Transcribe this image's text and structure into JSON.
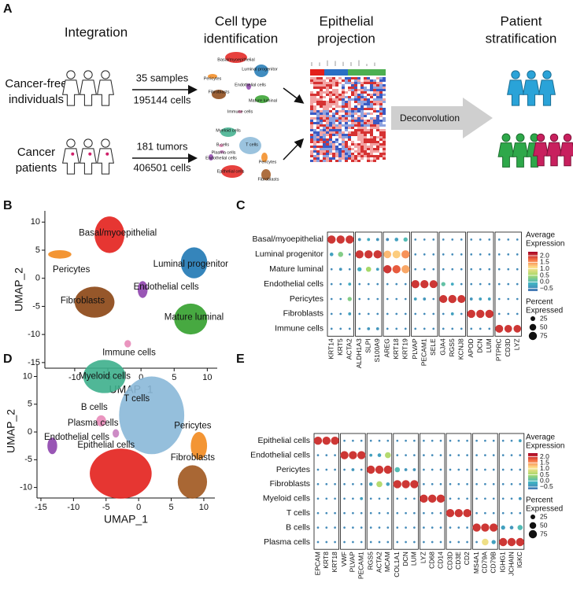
{
  "panel_labels": [
    "A",
    "B",
    "C",
    "D",
    "E"
  ],
  "panel_a": {
    "steps": {
      "integration": "Integration",
      "cell_type": [
        "Cell type",
        "identification"
      ],
      "projection": [
        "Epithelial",
        "projection"
      ],
      "stratification": [
        "Patient",
        "stratification"
      ]
    },
    "groups": [
      {
        "name": [
          "Cancer-free",
          "individuals"
        ],
        "count": "35 samples",
        "cells": "195144 cells"
      },
      {
        "name": [
          "Cancer",
          "patients"
        ],
        "count": "181 tumors",
        "cells": "406501 cells"
      }
    ],
    "mini_umap_1": [
      "Basal/myoepithelial",
      "Luminal progenitor",
      "Pericytes",
      "Endothelial cells",
      "Fibroblasts",
      "Mature luminal",
      "Immune cells"
    ],
    "mini_umap_2": [
      "Myeloid cells",
      "T cells",
      "B cells",
      "Plasma cells",
      "Endothelial cells",
      "Pericytes",
      "Epithelial cells",
      "Fibroblasts"
    ],
    "deconvolution": "Deconvolution"
  },
  "chart_data": [
    {
      "type": "scatter",
      "xlabel": "UMAP_1",
      "ylabel": "UMAP_2",
      "xlim": [
        -14.5,
        11.5
      ],
      "ylim": [
        -16,
        12
      ],
      "xticks": [
        -10,
        -5,
        0,
        5,
        10
      ],
      "yticks": [
        -15,
        -10,
        -5,
        0,
        5,
        10
      ],
      "clusters": [
        {
          "name": "Basal/myoepithelial",
          "color": "#e3201c",
          "x": [
            -7,
            -2.5
          ],
          "y": [
            4.5,
            11
          ]
        },
        {
          "name": "Luminal progenitor",
          "color": "#1f78b4",
          "x": [
            6,
            10
          ],
          "y": [
            0,
            5.5
          ]
        },
        {
          "name": "Pericytes",
          "color": "#f28a1e",
          "x": [
            -14,
            -10.5
          ],
          "y": [
            3.5,
            5
          ]
        },
        {
          "name": "Endothelial cells",
          "color": "#8e44ad",
          "x": [
            -0.5,
            1
          ],
          "y": [
            -3.5,
            -0.5
          ]
        },
        {
          "name": "Fibroblasts",
          "color": "#8b4513",
          "x": [
            -10,
            -4
          ],
          "y": [
            -7,
            -1.5
          ]
        },
        {
          "name": "Mature luminal",
          "color": "#33a02c",
          "x": [
            5,
            10
          ],
          "y": [
            -10,
            -4.5
          ]
        },
        {
          "name": "Immune cells",
          "color": "#e889b8",
          "x": [
            -2.5,
            -1.5
          ],
          "y": [
            -12.3,
            -11
          ]
        }
      ]
    },
    {
      "type": "scatter",
      "xlabel": "UMAP_1",
      "ylabel": "UMAP_2",
      "xlim": [
        -15.6,
        11.7
      ],
      "ylim": [
        -11.9,
        12.2
      ],
      "xticks": [
        -15,
        -10,
        -5,
        0,
        5,
        10
      ],
      "yticks": [
        -10,
        -5,
        0,
        5,
        10
      ],
      "clusters": [
        {
          "name": "Myeloid cells",
          "color": "#3daf8c",
          "x": [
            -8.5,
            -2
          ],
          "y": [
            7,
            13
          ]
        },
        {
          "name": "T cells",
          "color": "#8ab8d8",
          "x": [
            -3,
            7
          ],
          "y": [
            -4,
            10
          ]
        },
        {
          "name": "B cells",
          "color": "#e889b8",
          "x": [
            -6.5,
            -5
          ],
          "y": [
            1,
            3
          ]
        },
        {
          "name": "Plasma cells",
          "color": "#c880c0",
          "x": [
            -4,
            -3
          ],
          "y": [
            -1,
            0.5
          ]
        },
        {
          "name": "Endothelial cells",
          "color": "#8e44ad",
          "x": [
            -14,
            -12.5
          ],
          "y": [
            -4,
            -1
          ]
        },
        {
          "name": "Epithelial cells",
          "color": "#e3201c",
          "x": [
            -7.5,
            2
          ],
          "y": [
            -12,
            -3
          ]
        },
        {
          "name": "Pericytes",
          "color": "#f28a1e",
          "x": [
            8,
            10.5
          ],
          "y": [
            -5,
            0
          ]
        },
        {
          "name": "Fibroblasts",
          "color": "#a0561e",
          "x": [
            6,
            10.5
          ],
          "y": [
            -12,
            -6
          ]
        }
      ]
    },
    {
      "type": "dot",
      "rows": [
        "Basal/myoepithelial",
        "Luminal progenitor",
        "Mature luminal",
        "Endothelial cells",
        "Pericytes",
        "Fibroblasts",
        "Immune cells"
      ],
      "gene_groups": [
        [
          "KRT14",
          "KRT5",
          "ACTA2"
        ],
        [
          "ALDH1A3",
          "SLPI",
          "S100A9"
        ],
        [
          "AREG",
          "KRT18",
          "KRT19"
        ],
        [
          "PLVAP",
          "PECAM1",
          "SELE"
        ],
        [
          "GJA4",
          "RGS5",
          "KCNJ8"
        ],
        [
          "APOD",
          "DCN",
          "LUM"
        ],
        [
          "PTPRC",
          "CD3D",
          "LYZ"
        ]
      ],
      "expression": [
        [
          2,
          2,
          2,
          -0.4,
          -0.2,
          -0.4,
          -0.5,
          -0.3,
          0,
          -0.5,
          -0.5,
          -0.5,
          -0.5,
          -0.5,
          -0.5,
          -0.5,
          -0.5,
          -0.5,
          -0.5,
          -0.5,
          -0.5
        ],
        [
          -0.3,
          0.3,
          -0.5,
          2,
          2,
          2,
          1.3,
          1.2,
          1.5,
          -0.5,
          -0.5,
          -0.5,
          -0.5,
          -0.5,
          -0.5,
          -0.5,
          -0.5,
          -0.5,
          -0.5,
          -0.5,
          -0.5
        ],
        [
          -0.5,
          -0.4,
          -0.5,
          -0.2,
          0.5,
          -0.3,
          2,
          1.8,
          1.4,
          -0.5,
          -0.5,
          -0.5,
          -0.5,
          -0.5,
          -0.5,
          -0.5,
          -0.5,
          -0.5,
          -0.5,
          -0.5,
          -0.5
        ],
        [
          -0.5,
          -0.5,
          -0.2,
          -0.5,
          -0.5,
          -0.5,
          -0.5,
          -0.5,
          -0.5,
          2,
          2,
          2,
          0.1,
          -0.2,
          -0.5,
          -0.5,
          -0.5,
          -0.5,
          -0.5,
          -0.5,
          -0.5
        ],
        [
          -0.5,
          -0.5,
          0.3,
          -0.5,
          -0.5,
          -0.5,
          -0.5,
          -0.5,
          -0.5,
          -0.3,
          -0.4,
          -0.5,
          2,
          2,
          2,
          -0.4,
          -0.3,
          -0.3,
          -0.5,
          -0.5,
          -0.5
        ],
        [
          -0.5,
          -0.5,
          -0.3,
          -0.5,
          -0.5,
          -0.5,
          -0.5,
          -0.5,
          -0.5,
          -0.5,
          -0.5,
          -0.5,
          -0.5,
          -0.3,
          -0.5,
          2,
          2,
          2,
          -0.5,
          -0.5,
          -0.5
        ],
        [
          -0.5,
          -0.5,
          -0.5,
          -0.5,
          -0.4,
          -0.4,
          -0.5,
          -0.5,
          -0.5,
          -0.5,
          -0.5,
          -0.5,
          -0.5,
          -0.5,
          -0.5,
          -0.5,
          -0.5,
          -0.5,
          2,
          2,
          2
        ]
      ],
      "percent": [
        [
          75,
          75,
          75,
          10,
          10,
          10,
          10,
          15,
          20,
          5,
          5,
          5,
          5,
          5,
          5,
          5,
          5,
          5,
          5,
          5,
          5
        ],
        [
          15,
          30,
          5,
          75,
          75,
          75,
          65,
          70,
          75,
          5,
          5,
          5,
          5,
          5,
          5,
          5,
          5,
          5,
          5,
          5,
          5
        ],
        [
          5,
          10,
          5,
          20,
          30,
          10,
          75,
          75,
          75,
          5,
          5,
          5,
          5,
          5,
          5,
          5,
          5,
          5,
          5,
          5,
          5
        ],
        [
          5,
          5,
          10,
          5,
          5,
          5,
          5,
          5,
          5,
          75,
          75,
          70,
          20,
          10,
          5,
          5,
          5,
          5,
          5,
          5,
          5
        ],
        [
          5,
          5,
          20,
          5,
          5,
          5,
          5,
          5,
          5,
          10,
          10,
          5,
          70,
          75,
          70,
          10,
          10,
          10,
          5,
          5,
          5
        ],
        [
          5,
          5,
          10,
          5,
          5,
          5,
          5,
          5,
          5,
          5,
          5,
          5,
          5,
          10,
          5,
          75,
          75,
          75,
          5,
          5,
          5
        ],
        [
          5,
          5,
          5,
          5,
          10,
          10,
          5,
          5,
          5,
          5,
          5,
          5,
          5,
          5,
          5,
          5,
          5,
          5,
          70,
          65,
          65
        ]
      ],
      "color_title": [
        "Average",
        "Expression"
      ],
      "size_title": [
        "Percent",
        "Expressed"
      ],
      "colormap": [
        "#4575b4",
        "#41b6c4",
        "#a6d96a",
        "#fee08b",
        "#f46d43",
        "#a50026"
      ],
      "color_lim": [
        -0.7,
        2.3
      ],
      "color_ticks": [
        {
          "value": 2,
          "label": "2.0"
        },
        {
          "value": 1.5,
          "label": "1.5"
        },
        {
          "value": 1,
          "label": "1.0"
        },
        {
          "value": 0.5,
          "label": "0.5"
        },
        {
          "value": 0,
          "label": "0.0"
        },
        {
          "value": -0.5,
          "label": "−0.5"
        }
      ],
      "size_ticks": [
        25,
        50,
        75
      ]
    },
    {
      "type": "dot",
      "rows": [
        "Epithelial cells",
        "Endothelial cells",
        "Pericytes",
        "Fibroblasts",
        "Myeloid cells",
        "T cells",
        "B cells",
        "Plasma cells"
      ],
      "gene_groups": [
        [
          "EPCAM",
          "KRT8",
          "KRT18"
        ],
        [
          "VWF",
          "PLVAP",
          "PECAM1"
        ],
        [
          "RGS5",
          "ACTA2",
          "MCAM"
        ],
        [
          "COL1A1",
          "DCN",
          "LUM"
        ],
        [
          "LYZ",
          "CD68",
          "CD14"
        ],
        [
          "CD3D",
          "CD3E",
          "CD2"
        ],
        [
          "MS4A1",
          "CD79A",
          "CD79B"
        ],
        [
          "IGHG1",
          "JCHAIN",
          "IGKC"
        ]
      ],
      "expression": [
        [
          2,
          2,
          2,
          -0.5,
          -0.5,
          -0.5,
          -0.5,
          -0.5,
          -0.5,
          -0.5,
          -0.5,
          -0.5,
          -0.5,
          -0.5,
          -0.5,
          -0.5,
          -0.5,
          -0.5,
          -0.5,
          -0.5,
          -0.5,
          -0.5,
          -0.5,
          -0.3
        ],
        [
          -0.5,
          -0.5,
          -0.5,
          2,
          2,
          2,
          -0.3,
          -0.3,
          0.6,
          -0.5,
          -0.5,
          -0.5,
          -0.5,
          -0.5,
          -0.5,
          -0.5,
          -0.5,
          -0.5,
          -0.5,
          -0.5,
          -0.5,
          -0.5,
          -0.5,
          -0.5
        ],
        [
          -0.5,
          -0.5,
          -0.5,
          -0.5,
          -0.4,
          -0.5,
          2,
          2,
          2,
          0,
          -0.4,
          -0.4,
          -0.5,
          -0.5,
          -0.5,
          -0.5,
          -0.5,
          -0.5,
          -0.5,
          -0.5,
          -0.5,
          -0.5,
          -0.5,
          -0.5
        ],
        [
          -0.5,
          -0.5,
          -0.5,
          -0.5,
          -0.5,
          -0.5,
          -0.3,
          0.6,
          -0.3,
          2,
          2,
          2,
          -0.5,
          -0.5,
          -0.5,
          -0.5,
          -0.5,
          -0.5,
          -0.5,
          -0.5,
          -0.5,
          -0.5,
          -0.5,
          -0.5
        ],
        [
          -0.5,
          -0.5,
          -0.5,
          -0.5,
          -0.5,
          -0.3,
          -0.5,
          -0.5,
          -0.5,
          -0.5,
          -0.5,
          -0.5,
          2,
          2,
          2,
          -0.5,
          -0.5,
          -0.5,
          -0.5,
          -0.5,
          -0.5,
          -0.5,
          -0.5,
          -0.4
        ],
        [
          -0.5,
          -0.5,
          -0.5,
          -0.5,
          -0.5,
          -0.5,
          -0.5,
          -0.5,
          -0.5,
          -0.5,
          -0.5,
          -0.5,
          -0.5,
          -0.5,
          -0.5,
          2,
          2,
          2,
          -0.5,
          -0.5,
          -0.5,
          -0.5,
          -0.5,
          -0.5
        ],
        [
          -0.5,
          -0.5,
          -0.5,
          -0.5,
          -0.5,
          -0.5,
          -0.5,
          -0.5,
          -0.5,
          -0.5,
          -0.5,
          -0.5,
          -0.5,
          -0.5,
          -0.5,
          -0.5,
          -0.5,
          -0.5,
          2,
          2,
          2,
          -0.3,
          -0.4,
          0
        ],
        [
          -0.5,
          -0.5,
          -0.5,
          -0.5,
          -0.5,
          -0.5,
          -0.5,
          -0.5,
          -0.5,
          -0.5,
          -0.5,
          -0.5,
          -0.5,
          -0.5,
          -0.5,
          -0.5,
          -0.5,
          -0.5,
          -0.5,
          1,
          -0.3,
          2,
          2,
          2
        ]
      ],
      "percent": [
        [
          75,
          75,
          75,
          5,
          5,
          5,
          5,
          5,
          5,
          5,
          5,
          5,
          5,
          5,
          5,
          5,
          5,
          5,
          5,
          5,
          5,
          5,
          5,
          10
        ],
        [
          5,
          5,
          5,
          75,
          75,
          75,
          10,
          15,
          40,
          5,
          5,
          5,
          5,
          5,
          5,
          5,
          5,
          5,
          5,
          5,
          5,
          5,
          5,
          5
        ],
        [
          5,
          5,
          5,
          5,
          10,
          5,
          75,
          75,
          75,
          30,
          10,
          10,
          5,
          5,
          5,
          5,
          5,
          5,
          5,
          5,
          5,
          5,
          5,
          5
        ],
        [
          5,
          5,
          5,
          5,
          5,
          5,
          15,
          40,
          15,
          75,
          75,
          75,
          5,
          5,
          5,
          5,
          5,
          5,
          5,
          5,
          5,
          5,
          5,
          5
        ],
        [
          5,
          5,
          5,
          5,
          5,
          10,
          5,
          5,
          5,
          5,
          5,
          5,
          75,
          75,
          75,
          5,
          5,
          5,
          5,
          5,
          5,
          5,
          5,
          10
        ],
        [
          5,
          5,
          5,
          5,
          5,
          5,
          5,
          5,
          5,
          5,
          5,
          5,
          5,
          5,
          5,
          75,
          75,
          75,
          5,
          5,
          5,
          5,
          5,
          5
        ],
        [
          5,
          5,
          5,
          5,
          5,
          5,
          5,
          5,
          5,
          5,
          5,
          5,
          5,
          5,
          5,
          5,
          5,
          5,
          75,
          75,
          75,
          20,
          15,
          30
        ],
        [
          5,
          5,
          5,
          5,
          5,
          5,
          5,
          5,
          5,
          5,
          5,
          5,
          5,
          5,
          5,
          5,
          5,
          5,
          5,
          50,
          20,
          75,
          75,
          75
        ]
      ],
      "color_title": [
        "Average",
        "Expression"
      ],
      "size_title": [
        "Percent",
        "Expressed"
      ],
      "colormap": [
        "#4575b4",
        "#41b6c4",
        "#a6d96a",
        "#fee08b",
        "#f46d43",
        "#a50026"
      ],
      "color_lim": [
        -0.7,
        2.3
      ],
      "color_ticks": [
        {
          "value": 2,
          "label": "2.0"
        },
        {
          "value": 1.5,
          "label": "1.5"
        },
        {
          "value": 1,
          "label": "1.0"
        },
        {
          "value": 0.5,
          "label": "0.5"
        },
        {
          "value": 0,
          "label": "0.0"
        },
        {
          "value": -0.5,
          "label": "−0.5"
        }
      ],
      "size_ticks": [
        25,
        50,
        75
      ]
    }
  ]
}
